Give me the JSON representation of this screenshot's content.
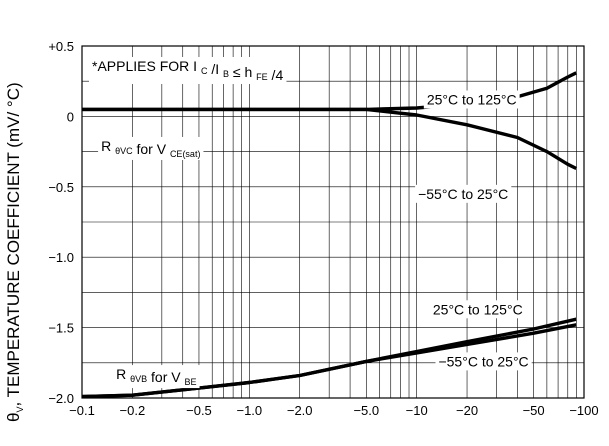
{
  "chart_data": {
    "type": "line",
    "x_scale": "log",
    "grid": true,
    "y_axis_label": {
      "prefix": "θ",
      "prefix_sub": "V",
      "separator": ",",
      "text": "TEMPERATURE COEFFICIENT (mV/ °C)"
    },
    "xlim": [
      0.1,
      100
    ],
    "ylim": [
      -2.0,
      0.5
    ],
    "x_ticks": [
      {
        "value": 0.1,
        "label": "−0.1"
      },
      {
        "value": 0.2,
        "label": "−0.2"
      },
      {
        "value": 0.5,
        "label": "−0.5"
      },
      {
        "value": 1,
        "label": "−1.0"
      },
      {
        "value": 2,
        "label": "−2.0"
      },
      {
        "value": 5,
        "label": "−5.0"
      },
      {
        "value": 10,
        "label": "−10"
      },
      {
        "value": 20,
        "label": "−20"
      },
      {
        "value": 50,
        "label": "−50"
      },
      {
        "value": 100,
        "label": "−100"
      }
    ],
    "y_ticks": [
      {
        "value": 0.5,
        "label": "+0.5"
      },
      {
        "value": 0,
        "label": "0"
      },
      {
        "value": -0.5,
        "label": "−0.5"
      },
      {
        "value": -1.0,
        "label": "−1.0"
      },
      {
        "value": -1.5,
        "label": "−1.5"
      },
      {
        "value": -2.0,
        "label": "−2.0"
      }
    ],
    "note": {
      "parts": [
        {
          "t": "*APPLIES FOR I "
        },
        {
          "t": "C",
          "sub": true
        },
        {
          "t": " /I "
        },
        {
          "t": "B",
          "sub": true
        },
        {
          "t": " ≤ h "
        },
        {
          "t": "FE",
          "sub": true
        },
        {
          "t": " /4"
        }
      ]
    },
    "annotations": [
      {
        "name": "annotation-r-thetavc",
        "x": 0.13,
        "y": -0.21,
        "parts": [
          {
            "t": "R "
          },
          {
            "t": "θVC",
            "sub": true
          },
          {
            "t": " for V "
          },
          {
            "t": "CE(sat)",
            "sub": true
          }
        ]
      },
      {
        "name": "annotation-r-thetavb",
        "x": 0.16,
        "y": -1.83,
        "parts": [
          {
            "t": "R "
          },
          {
            "t": "θVB",
            "sub": true
          },
          {
            "t": " for V "
          },
          {
            "t": "BE",
            "sub": true
          }
        ]
      },
      {
        "name": "label-vc-25-125",
        "x": 11.5,
        "y": 0.12,
        "parts": [
          {
            "t": "25°C to 125°C"
          }
        ]
      },
      {
        "name": "label-vc-55-25",
        "x": 10.2,
        "y": -0.55,
        "parts": [
          {
            "t": "−55°C to 25°C"
          }
        ]
      },
      {
        "name": "label-vb-25-125",
        "x": 12.5,
        "y": -1.37,
        "parts": [
          {
            "t": "25°C to 125°C"
          }
        ]
      },
      {
        "name": "label-vb-55-25",
        "x": 13.5,
        "y": -1.74,
        "parts": [
          {
            "t": "−55°C to 25°C"
          }
        ]
      }
    ],
    "series": [
      {
        "values": [
          [
            0.1,
            0.05
          ],
          [
            5,
            0.05
          ],
          [
            10,
            0.06
          ],
          [
            20,
            0.09
          ],
          [
            40,
            0.14
          ],
          [
            60,
            0.2
          ],
          [
            80,
            0.28
          ],
          [
            90,
            0.31
          ]
        ]
      },
      {
        "values": [
          [
            0.1,
            0.05
          ],
          [
            5,
            0.05
          ],
          [
            10,
            0.01
          ],
          [
            20,
            -0.06
          ],
          [
            40,
            -0.15
          ],
          [
            60,
            -0.25
          ],
          [
            80,
            -0.34
          ],
          [
            90,
            -0.37
          ]
        ]
      },
      {
        "values": [
          [
            0.1,
            -1.99
          ],
          [
            0.2,
            -1.98
          ],
          [
            0.5,
            -1.93
          ],
          [
            1,
            -1.89
          ],
          [
            2,
            -1.84
          ],
          [
            5,
            -1.74
          ],
          [
            10,
            -1.67
          ],
          [
            20,
            -1.6
          ],
          [
            50,
            -1.51
          ],
          [
            90,
            -1.44
          ]
        ]
      },
      {
        "values": [
          [
            0.1,
            -1.99
          ],
          [
            0.2,
            -1.98
          ],
          [
            0.5,
            -1.93
          ],
          [
            1,
            -1.89
          ],
          [
            2,
            -1.84
          ],
          [
            5,
            -1.74
          ],
          [
            10,
            -1.68
          ],
          [
            20,
            -1.62
          ],
          [
            50,
            -1.54
          ],
          [
            90,
            -1.48
          ]
        ]
      }
    ]
  }
}
